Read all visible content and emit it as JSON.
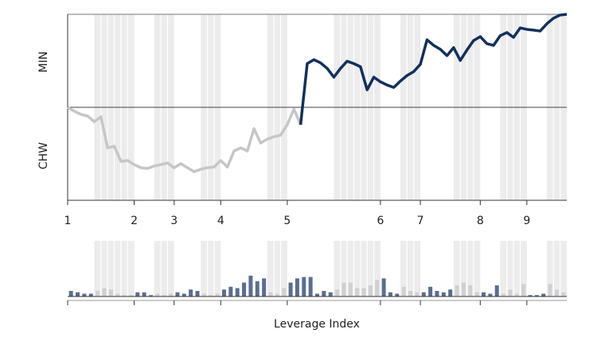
{
  "chart_data": [
    {
      "type": "line",
      "ylabel_top": "MIN",
      "ylabel_bottom": "CHW",
      "x": [
        0,
        1,
        2,
        3,
        4,
        5,
        6,
        7,
        8,
        9,
        10,
        11,
        12,
        13,
        14,
        15,
        16,
        17,
        18,
        19,
        20,
        21,
        22,
        23,
        24,
        25,
        26,
        27,
        28,
        29,
        30,
        31,
        32,
        33,
        34,
        35,
        36,
        37,
        38,
        39,
        40,
        41,
        42,
        43,
        44,
        45,
        46,
        47,
        48,
        49,
        50,
        51,
        52,
        53,
        54,
        55,
        56,
        57,
        58,
        59,
        60,
        61,
        62,
        63,
        64,
        65,
        66,
        67,
        68,
        69,
        70,
        71,
        72,
        73,
        74,
        75
      ],
      "values": [
        50.0,
        47.9,
        46.2,
        45.3,
        42.3,
        44.9,
        28.2,
        29.1,
        20.9,
        21.4,
        19.2,
        17.5,
        17.1,
        18.4,
        19.2,
        20.1,
        17.5,
        19.7,
        17.5,
        15.4,
        16.7,
        17.5,
        17.9,
        21.4,
        17.9,
        26.5,
        28.2,
        26.5,
        38.5,
        30.8,
        32.9,
        34.2,
        35.0,
        40.6,
        49.1,
        40.6,
        73.5,
        75.6,
        73.9,
        70.9,
        66.2,
        70.9,
        74.8,
        73.5,
        71.8,
        59.4,
        66.2,
        63.7,
        62.0,
        60.7,
        64.1,
        67.1,
        69.2,
        73.1,
        86.3,
        83.3,
        81.2,
        77.8,
        82.1,
        75.2,
        80.8,
        85.9,
        88.0,
        84.2,
        83.3,
        88.5,
        90.2,
        87.6,
        92.7,
        91.9,
        91.5,
        91.0,
        94.9,
        97.9,
        99.6,
        100
      ],
      "midline": 50,
      "color_above": "#13305c",
      "color_below": "#c6c6c6",
      "xlim": [
        0,
        75
      ],
      "ylim": [
        0,
        100
      ],
      "xticks": [
        {
          "value": 0,
          "label": "1"
        },
        {
          "value": 10,
          "label": "2"
        },
        {
          "value": 16,
          "label": "3"
        },
        {
          "value": 23,
          "label": "4"
        },
        {
          "value": 33,
          "label": "5"
        },
        {
          "value": 47,
          "label": "6"
        },
        {
          "value": 53,
          "label": "7"
        },
        {
          "value": 62,
          "label": "8"
        },
        {
          "value": 69,
          "label": "9"
        }
      ],
      "shaded_ranges": [
        [
          4,
          10
        ],
        [
          13,
          16
        ],
        [
          20,
          23
        ],
        [
          30,
          33
        ],
        [
          40,
          47
        ],
        [
          50,
          53
        ],
        [
          58,
          62
        ],
        [
          65,
          69
        ],
        [
          72,
          75
        ]
      ]
    },
    {
      "type": "bar",
      "xlabel": "Leverage Index",
      "x": [
        0,
        1,
        2,
        3,
        4,
        5,
        6,
        7,
        8,
        9,
        10,
        11,
        12,
        13,
        14,
        15,
        16,
        17,
        18,
        19,
        20,
        21,
        22,
        23,
        24,
        25,
        26,
        27,
        28,
        29,
        30,
        31,
        32,
        33,
        34,
        35,
        36,
        37,
        38,
        39,
        40,
        41,
        42,
        43,
        44,
        45,
        46,
        47,
        48,
        49,
        50,
        51,
        52,
        53,
        54,
        55,
        56,
        57,
        58,
        59,
        60,
        61,
        62,
        63,
        64,
        65,
        66,
        67,
        68,
        69,
        70,
        71,
        72,
        73,
        74,
        75
      ],
      "values": [
        0.4,
        0.3,
        0.2,
        0.2,
        0.4,
        0.6,
        0.5,
        0.2,
        0.1,
        0.1,
        0.3,
        0.3,
        0.1,
        0.2,
        0.1,
        0.2,
        0.3,
        0.2,
        0.5,
        0.4,
        0.2,
        0.1,
        0.2,
        0.5,
        0.7,
        0.6,
        1.0,
        1.5,
        1.1,
        1.3,
        0.3,
        0.2,
        0.6,
        1.0,
        1.3,
        1.4,
        1.4,
        0.2,
        0.4,
        0.3,
        0.5,
        1.0,
        1.0,
        0.6,
        0.6,
        0.8,
        1.2,
        1.3,
        0.3,
        0.2,
        0.7,
        0.4,
        0.3,
        0.3,
        0.7,
        0.4,
        0.3,
        0.5,
        0.8,
        1.0,
        0.8,
        0.3,
        0.3,
        0.2,
        0.8,
        0.2,
        0.5,
        0.2,
        0.9,
        0.1,
        0.1,
        0.2,
        0.9,
        0.5,
        0.3,
        0
      ],
      "color": "#5a6e8f",
      "color_shaded": "#d0d0d0",
      "xlim": [
        0,
        75
      ],
      "ylim": [
        0,
        4
      ],
      "xticks": [
        0,
        10,
        16,
        23,
        33,
        47,
        53,
        62,
        69
      ],
      "shaded_ranges": [
        [
          4,
          10
        ],
        [
          13,
          16
        ],
        [
          20,
          23
        ],
        [
          30,
          33
        ],
        [
          40,
          47
        ],
        [
          50,
          53
        ],
        [
          58,
          62
        ],
        [
          65,
          69
        ],
        [
          72,
          75
        ]
      ]
    }
  ]
}
